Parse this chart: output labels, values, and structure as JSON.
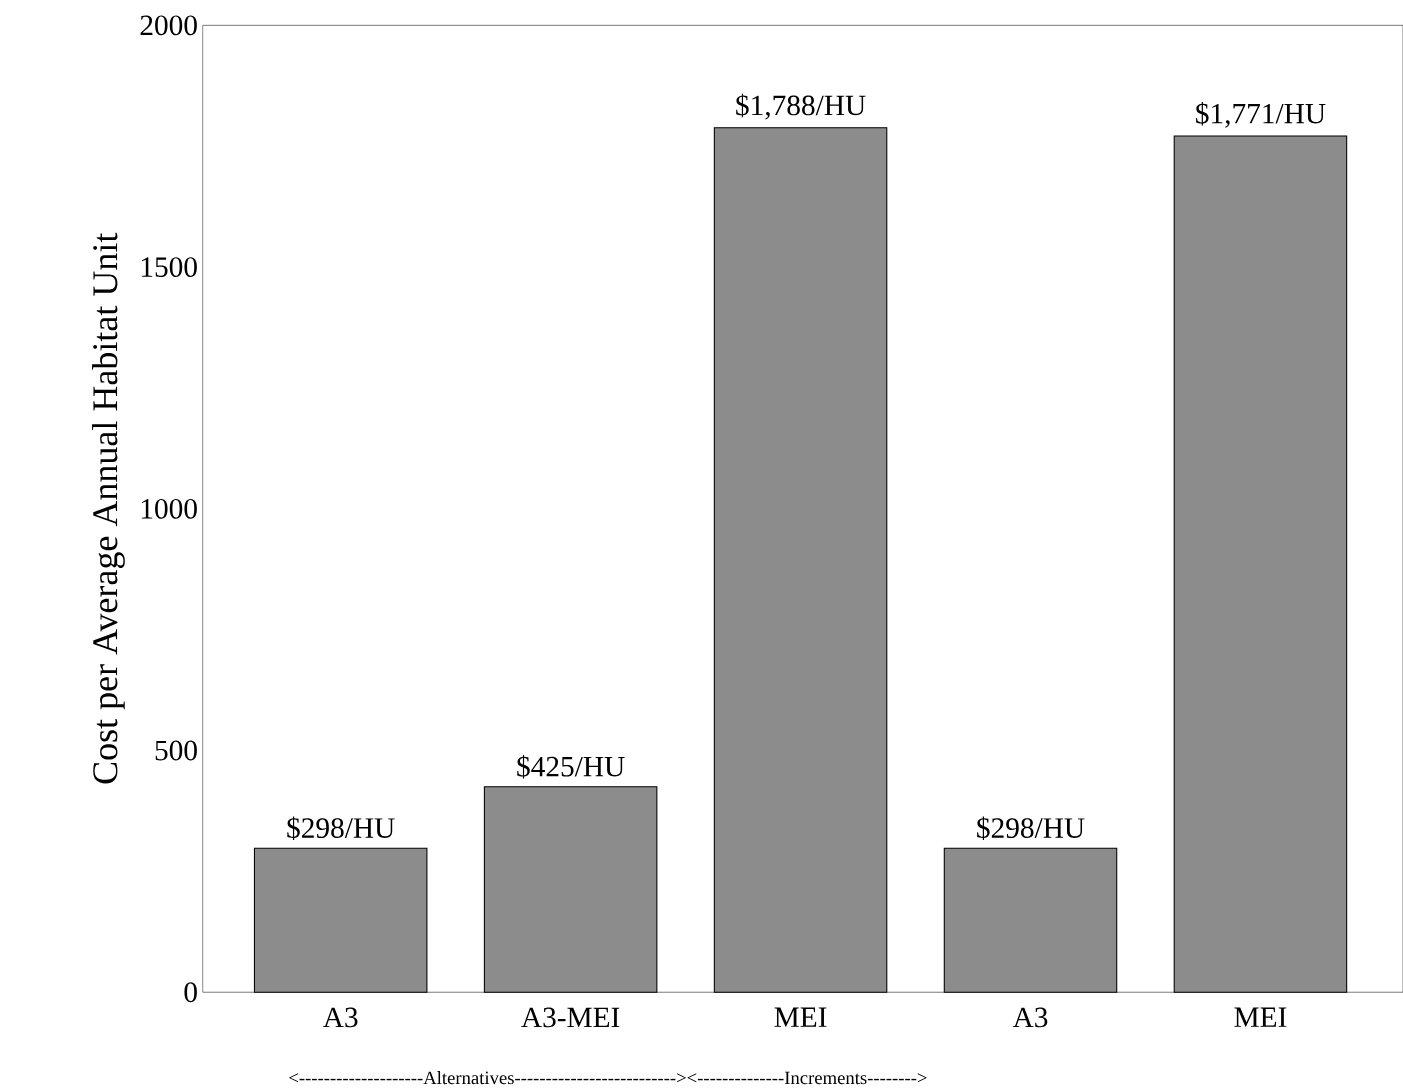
{
  "chart_data": {
    "type": "bar",
    "ylabel": "Cost per Average Annual Habitat Unit",
    "categories": [
      "A3",
      "A3-MEI",
      "MEI",
      "A3",
      "MEI"
    ],
    "values": [
      298,
      425,
      1788,
      298,
      1771
    ],
    "value_labels": [
      "$298/HU",
      "$425/HU",
      "$1,788/HU",
      "$298/HU",
      "$1,771/HU"
    ],
    "color": "#8c8c8c",
    "ylim": [
      0,
      2000
    ],
    "yticks": [
      0,
      500,
      1000,
      1500,
      2000
    ],
    "grid": false,
    "annotations": [
      "<--------------------Alternatives-------------------------->",
      "<--------------Increments-------->"
    ]
  }
}
